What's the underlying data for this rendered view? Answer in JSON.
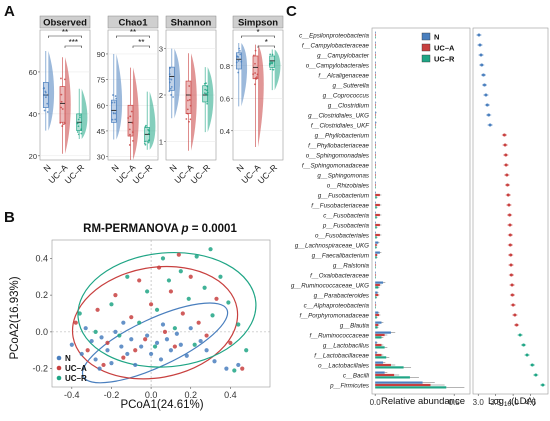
{
  "figure": {
    "panel_labels": [
      "A",
      "B",
      "C"
    ],
    "groups": [
      "N",
      "UC–A",
      "UC–R"
    ],
    "colors": {
      "N": "#4a7fbe",
      "UC–A": "#c8403f",
      "UC–R": "#1fa585",
      "strip_bg": "#cfcfcf"
    }
  },
  "chart_data": [
    {
      "type": "box",
      "panel": "A",
      "metrics": [
        {
          "name": "Observed",
          "ylim": [
            18,
            80
          ],
          "ticks": [
            20,
            40,
            60
          ],
          "medians": [
            49,
            45,
            36
          ],
          "q1": [
            43,
            36,
            32
          ],
          "q3": [
            55,
            53,
            40
          ],
          "min": [
            32,
            21,
            28
          ],
          "max": [
            70,
            67,
            52
          ],
          "significance": [
            {
              "pair": [
                0,
                2
              ],
              "label": "**"
            },
            {
              "pair": [
                1,
                2
              ],
              "label": "***"
            }
          ]
        },
        {
          "name": "Chao1",
          "ylim": [
            28,
            104
          ],
          "ticks": [
            30,
            45,
            60,
            75,
            90
          ],
          "medians": [
            57,
            50,
            43
          ],
          "q1": [
            50,
            42,
            39
          ],
          "q3": [
            63,
            60,
            47
          ],
          "min": [
            40,
            28,
            34
          ],
          "max": [
            90,
            82,
            68
          ],
          "significance": [
            {
              "pair": [
                0,
                2
              ],
              "label": "**"
            },
            {
              "pair": [
                1,
                2
              ],
              "label": "**"
            }
          ]
        },
        {
          "name": "Shannon",
          "ylim": [
            0.6,
            3.4
          ],
          "ticks": [
            1,
            2,
            3
          ],
          "medians": [
            2.4,
            2.0,
            2.0
          ],
          "q1": [
            2.1,
            1.6,
            1.85
          ],
          "q3": [
            2.6,
            2.3,
            2.2
          ],
          "min": [
            1.5,
            0.8,
            1.2
          ],
          "max": [
            3.0,
            2.9,
            2.6
          ],
          "significance": []
        },
        {
          "name": "Simpson",
          "ylim": [
            0.22,
            1.02
          ],
          "ticks": [
            0.4,
            0.6,
            0.8
          ],
          "medians": [
            0.84,
            0.79,
            0.83
          ],
          "q1": [
            0.78,
            0.72,
            0.79
          ],
          "q3": [
            0.88,
            0.86,
            0.86
          ],
          "min": [
            0.55,
            0.3,
            0.65
          ],
          "max": [
            0.94,
            0.93,
            0.9
          ],
          "significance": [
            {
              "pair": [
                0,
                2
              ],
              "label": "*"
            },
            {
              "pair": [
                1,
                2
              ],
              "label": "*"
            }
          ]
        }
      ]
    },
    {
      "type": "scatter",
      "panel": "B",
      "title": "RM-PERMANOVA p = 0.0001",
      "title_parts": {
        "prefix": "RM-PERMANOVA ",
        "p": "p",
        "rest": " = 0.0001"
      },
      "xlabel": "PCoA1(24.61%)",
      "ylabel": "PCoA2(16.93%)",
      "xlim": [
        -0.5,
        0.6
      ],
      "ylim": [
        -0.3,
        0.5
      ],
      "xticks": [
        -0.4,
        -0.2,
        0.0,
        0.2,
        0.4
      ],
      "yticks": [
        -0.2,
        0.0,
        0.2,
        0.4
      ],
      "legend": [
        "N",
        "UC–A",
        "UC–R"
      ],
      "legend_position": "bottom-left",
      "ellipses": [
        {
          "group": "N",
          "cx": 0.02,
          "cy": -0.06,
          "rx": 0.4,
          "ry": 0.13,
          "angle": 25
        },
        {
          "group": "UC–A",
          "cx": 0.02,
          "cy": 0.05,
          "rx": 0.42,
          "ry": 0.3,
          "angle": 10
        },
        {
          "group": "UC–R",
          "cx": 0.08,
          "cy": 0.12,
          "rx": 0.45,
          "ry": 0.31,
          "angle": 5
        }
      ],
      "points": {
        "N": [
          [
            -0.4,
            -0.07
          ],
          [
            -0.35,
            -0.12
          ],
          [
            -0.3,
            -0.05
          ],
          [
            -0.28,
            -0.15
          ],
          [
            -0.25,
            -0.03
          ],
          [
            -0.22,
            -0.1
          ],
          [
            -0.2,
            -0.17
          ],
          [
            -0.18,
            0.0
          ],
          [
            -0.15,
            -0.08
          ],
          [
            -0.12,
            -0.12
          ],
          [
            -0.1,
            -0.04
          ],
          [
            -0.08,
            -0.18
          ],
          [
            -0.05,
            -0.08
          ],
          [
            -0.02,
            -0.02
          ],
          [
            0.0,
            -0.12
          ],
          [
            0.03,
            -0.06
          ],
          [
            0.05,
            -0.15
          ],
          [
            0.08,
            -0.04
          ],
          [
            0.1,
            -0.1
          ],
          [
            0.13,
            -0.01
          ],
          [
            0.15,
            -0.07
          ],
          [
            0.18,
            -0.13
          ],
          [
            0.2,
            0.02
          ],
          [
            0.25,
            -0.05
          ],
          [
            0.28,
            -0.1
          ],
          [
            0.32,
            -0.16
          ],
          [
            0.38,
            -0.2
          ],
          [
            0.44,
            -0.18
          ],
          [
            -0.33,
            0.02
          ],
          [
            -0.26,
            -0.2
          ],
          [
            -0.14,
            0.05
          ],
          [
            0.06,
            0.04
          ]
        ],
        "UC–A": [
          [
            -0.38,
            0.05
          ],
          [
            -0.32,
            -0.1
          ],
          [
            -0.27,
            0.12
          ],
          [
            -0.22,
            -0.06
          ],
          [
            -0.18,
            0.2
          ],
          [
            -0.14,
            -0.14
          ],
          [
            -0.1,
            0.08
          ],
          [
            -0.06,
            0.28
          ],
          [
            -0.03,
            -0.04
          ],
          [
            0.0,
            0.15
          ],
          [
            0.04,
            0.35
          ],
          [
            0.07,
            0.0
          ],
          [
            0.1,
            0.22
          ],
          [
            0.12,
            -0.08
          ],
          [
            0.16,
            0.1
          ],
          [
            0.2,
            0.3
          ],
          [
            0.24,
            0.05
          ],
          [
            0.28,
            -0.02
          ],
          [
            0.33,
            0.18
          ],
          [
            0.4,
            -0.06
          ],
          [
            0.46,
            -0.2
          ],
          [
            -0.24,
            -0.18
          ],
          [
            0.14,
            0.42
          ],
          [
            -0.08,
            -0.1
          ]
        ],
        "UC–R": [
          [
            -0.36,
            0.1
          ],
          [
            -0.28,
            0.0
          ],
          [
            -0.2,
            0.15
          ],
          [
            -0.12,
            0.3
          ],
          [
            -0.06,
            0.05
          ],
          [
            -0.02,
            0.22
          ],
          [
            0.03,
            0.12
          ],
          [
            0.06,
            0.4
          ],
          [
            0.09,
            0.28
          ],
          [
            0.12,
            0.02
          ],
          [
            0.15,
            0.33
          ],
          [
            0.19,
            0.18
          ],
          [
            0.23,
            0.41
          ],
          [
            0.27,
            0.24
          ],
          [
            0.31,
            0.09
          ],
          [
            0.35,
            0.3
          ],
          [
            0.39,
            0.16
          ],
          [
            0.44,
            0.04
          ],
          [
            0.48,
            -0.1
          ],
          [
            0.42,
            -0.21
          ],
          [
            0.22,
            -0.07
          ],
          [
            0.02,
            -0.08
          ],
          [
            -0.16,
            -0.02
          ],
          [
            0.3,
            0.45
          ]
        ]
      }
    },
    {
      "type": "bar",
      "panel": "C",
      "xlabel_left": "Relative abundance",
      "xlabel_right_prefix": "Log",
      "xlabel_right_sub": "10",
      "xlabel_right_suffix": "(LDA)",
      "left_xlim": [
        -0.02,
        0.6
      ],
      "left_xticks": [
        0.0,
        0.5
      ],
      "right_xlim": [
        2.85,
        5.0
      ],
      "right_xticks": [
        3.0,
        3.5,
        4.0,
        4.5
      ],
      "legend": [
        "N",
        "UC–A",
        "UC–R"
      ],
      "legend_position": "top",
      "taxa": [
        {
          "label": "c__Epsilonproteobacteria",
          "abund": [
            0.001,
            0.0005,
            0.0005
          ],
          "lda": 3.02,
          "group": "N"
        },
        {
          "label": "f__Campylobacteraceae",
          "abund": [
            0.001,
            0.0005,
            0.0005
          ],
          "lda": 3.05,
          "group": "N"
        },
        {
          "label": "g__Campylobacter",
          "abund": [
            0.001,
            0.0005,
            0.0005
          ],
          "lda": 3.08,
          "group": "N"
        },
        {
          "label": "o__Campylobacterales",
          "abund": [
            0.001,
            0.0005,
            0.0005
          ],
          "lda": 3.1,
          "group": "N"
        },
        {
          "label": "f__Alcaligenaceae",
          "abund": [
            0.002,
            0.001,
            0.001
          ],
          "lda": 3.15,
          "group": "N"
        },
        {
          "label": "g__Sutterella",
          "abund": [
            0.002,
            0.001,
            0.001
          ],
          "lda": 3.18,
          "group": "N"
        },
        {
          "label": "g__Coprococcus",
          "abund": [
            0.003,
            0.0015,
            0.0015
          ],
          "lda": 3.22,
          "group": "N"
        },
        {
          "label": "g__Clostridium",
          "abund": [
            0.004,
            0.002,
            0.002
          ],
          "lda": 3.26,
          "group": "N"
        },
        {
          "label": "g__Clostridiales_UKG",
          "abund": [
            0.006,
            0.003,
            0.003
          ],
          "lda": 3.3,
          "group": "N"
        },
        {
          "label": "f__Clostridiales_UKF",
          "abund": [
            0.006,
            0.003,
            0.003
          ],
          "lda": 3.34,
          "group": "N"
        },
        {
          "label": "g__Phyllobacterium",
          "abund": [
            0.0003,
            0.001,
            0.0003
          ],
          "lda": 3.75,
          "group": "UC–A"
        },
        {
          "label": "f__Phyllobacteriaceae",
          "abund": [
            0.0003,
            0.001,
            0.0003
          ],
          "lda": 3.77,
          "group": "UC–A"
        },
        {
          "label": "o__Sphingomonadales",
          "abund": [
            0.0004,
            0.0015,
            0.0004
          ],
          "lda": 3.79,
          "group": "UC–A"
        },
        {
          "label": "f__Sphingomonadaceae",
          "abund": [
            0.0004,
            0.0015,
            0.0004
          ],
          "lda": 3.8,
          "group": "UC–A"
        },
        {
          "label": "g__Sphingomonas",
          "abund": [
            0.0004,
            0.0015,
            0.0004
          ],
          "lda": 3.82,
          "group": "UC–A"
        },
        {
          "label": "o__Rhizobiales",
          "abund": [
            0.0005,
            0.002,
            0.0005
          ],
          "lda": 3.84,
          "group": "UC–A"
        },
        {
          "label": "g__Fusobacterium",
          "abund": [
            0.002,
            0.03,
            0.01
          ],
          "lda": 3.86,
          "group": "UC–A"
        },
        {
          "label": "f__Fusobacteriaceae",
          "abund": [
            0.002,
            0.03,
            0.01
          ],
          "lda": 3.88,
          "group": "UC–A"
        },
        {
          "label": "c__Fusobacteria",
          "abund": [
            0.002,
            0.03,
            0.01
          ],
          "lda": 3.9,
          "group": "UC–A"
        },
        {
          "label": "p__Fusobacteria",
          "abund": [
            0.002,
            0.03,
            0.01
          ],
          "lda": 3.91,
          "group": "UC–A"
        },
        {
          "label": "o__Fusobacteriales",
          "abund": [
            0.002,
            0.03,
            0.01
          ],
          "lda": 3.92,
          "group": "UC–A"
        },
        {
          "label": "g__Lachnospiraceae_UKG",
          "abund": [
            0.02,
            0.01,
            0.008
          ],
          "lda": 3.92,
          "group": "UC–A"
        },
        {
          "label": "g__Faecalibacterium",
          "abund": [
            0.03,
            0.012,
            0.01
          ],
          "lda": 3.93,
          "group": "UC–A"
        },
        {
          "label": "g__Ralstonia",
          "abund": [
            0.0005,
            0.003,
            0.001
          ],
          "lda": 3.94,
          "group": "UC–A"
        },
        {
          "label": "f__Oxalobacteraceae",
          "abund": [
            0.0005,
            0.003,
            0.001
          ],
          "lda": 3.95,
          "group": "UC–A"
        },
        {
          "label": "g__Ruminococcaceae_UKG",
          "abund": [
            0.05,
            0.03,
            0.02
          ],
          "lda": 3.97,
          "group": "UC–A"
        },
        {
          "label": "g__Parabacteroides",
          "abund": [
            0.015,
            0.02,
            0.008
          ],
          "lda": 3.98,
          "group": "UC–A"
        },
        {
          "label": "c__Alphaproteobacteria",
          "abund": [
            0.001,
            0.004,
            0.001
          ],
          "lda": 4.0,
          "group": "UC–A"
        },
        {
          "label": "f__Porphyromonadaceae",
          "abund": [
            0.02,
            0.025,
            0.01
          ],
          "lda": 4.05,
          "group": "UC–A"
        },
        {
          "label": "g__Blautia",
          "abund": [
            0.04,
            0.02,
            0.015
          ],
          "lda": 4.1,
          "group": "UC–A"
        },
        {
          "label": "f__Ruminococcaceae",
          "abund": [
            0.1,
            0.06,
            0.04
          ],
          "lda": 4.2,
          "group": "UC–R"
        },
        {
          "label": "g__Lactobacillus",
          "abund": [
            0.01,
            0.04,
            0.06
          ],
          "lda": 4.3,
          "group": "UC–R"
        },
        {
          "label": "f__Lactobacillaceae",
          "abund": [
            0.01,
            0.04,
            0.07
          ],
          "lda": 4.4,
          "group": "UC–R"
        },
        {
          "label": "o__Lactobacillales",
          "abund": [
            0.05,
            0.1,
            0.18
          ],
          "lda": 4.55,
          "group": "UC–R"
        },
        {
          "label": "c__Bacilli",
          "abund": [
            0.06,
            0.12,
            0.22
          ],
          "lda": 4.65,
          "group": "UC–R"
        },
        {
          "label": "p__Firmicutes",
          "abund": [
            0.3,
            0.35,
            0.45
          ],
          "lda": 4.85,
          "group": "UC–R"
        }
      ]
    }
  ]
}
